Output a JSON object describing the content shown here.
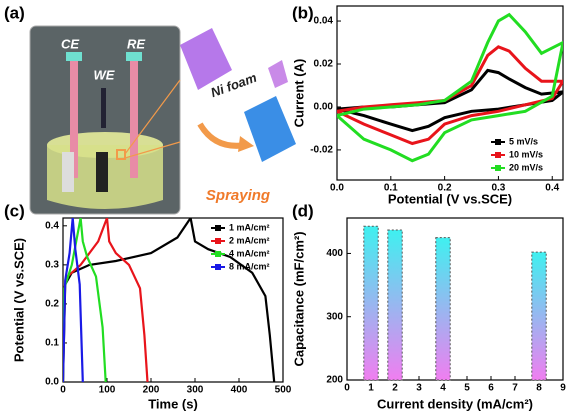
{
  "diagram": {
    "panel_label": "(a)",
    "labels": {
      "ce": "CE",
      "re": "RE",
      "we": "WE",
      "foam": "Ni foam",
      "spray": "Spraying"
    }
  },
  "chart_data": [
    {
      "type": "line",
      "panel_label": "(b)",
      "x_label": "Potential (V vs.SCE)",
      "y_label": "Current (A)",
      "xlim": [
        0,
        0.42
      ],
      "xticks": [
        {
          "value": 0,
          "label": "0.0"
        },
        0.1,
        0.2,
        0.3,
        0.4
      ],
      "ylim": [
        -0.034,
        0.047
      ],
      "yticks": [
        -0.02,
        {
          "value": 0,
          "label": "0.00"
        },
        0.02,
        0.04
      ],
      "legend": "lower right",
      "series": [
        {
          "name": "5 mV/s",
          "color": "#000000",
          "x": [
            0,
            0.05,
            0.1,
            0.15,
            0.2,
            0.25,
            0.28,
            0.3,
            0.32,
            0.35,
            0.38,
            0.42,
            0.4,
            0.35,
            0.3,
            0.25,
            0.2,
            0.17,
            0.14,
            0.1,
            0.05,
            0
          ],
          "values": [
            -0.001,
            0.0,
            0.0,
            0.001,
            0.002,
            0.008,
            0.017,
            0.016,
            0.013,
            0.009,
            0.006,
            0.007,
            0.003,
            0.001,
            -0.001,
            -0.002,
            -0.005,
            -0.009,
            -0.011,
            -0.008,
            -0.004,
            -0.001
          ]
        },
        {
          "name": "10 mV/s",
          "color": "#e8141b",
          "x": [
            0,
            0.05,
            0.1,
            0.15,
            0.2,
            0.25,
            0.28,
            0.3,
            0.32,
            0.35,
            0.38,
            0.42,
            0.4,
            0.35,
            0.3,
            0.25,
            0.2,
            0.17,
            0.14,
            0.1,
            0.05,
            0
          ],
          "values": [
            -0.002,
            0.0,
            0.001,
            0.002,
            0.003,
            0.01,
            0.024,
            0.028,
            0.026,
            0.018,
            0.012,
            0.012,
            0.004,
            0.001,
            -0.002,
            -0.004,
            -0.008,
            -0.015,
            -0.017,
            -0.013,
            -0.008,
            -0.002
          ]
        },
        {
          "name": "20 mV/s",
          "color": "#22dd22",
          "x": [
            0,
            0.05,
            0.1,
            0.15,
            0.2,
            0.25,
            0.28,
            0.3,
            0.32,
            0.35,
            0.38,
            0.42,
            0.4,
            0.35,
            0.3,
            0.25,
            0.2,
            0.17,
            0.14,
            0.1,
            0.05,
            0
          ],
          "values": [
            -0.004,
            -0.001,
            0.0,
            0.001,
            0.003,
            0.012,
            0.03,
            0.04,
            0.043,
            0.035,
            0.025,
            0.03,
            0.005,
            -0.002,
            -0.004,
            -0.006,
            -0.012,
            -0.022,
            -0.025,
            -0.02,
            -0.015,
            -0.004
          ]
        }
      ]
    },
    {
      "type": "line",
      "panel_label": "(c)",
      "x_label": "Time (s)",
      "y_label": "Potential (V vs.SCE)",
      "xlim": [
        0,
        500
      ],
      "xticks": [
        0,
        100,
        200,
        300,
        400,
        500
      ],
      "ylim": [
        0,
        0.42
      ],
      "yticks": [
        {
          "value": 0,
          "label": "0.0"
        },
        0.1,
        0.2,
        0.3,
        0.4
      ],
      "legend": "upper right",
      "series": [
        {
          "name": "1 mA/cm²",
          "color": "#000000",
          "x": [
            0,
            5,
            20,
            60,
            120,
            200,
            260,
            290,
            300,
            330,
            380,
            430,
            460,
            470,
            480
          ],
          "values": [
            0,
            0.25,
            0.28,
            0.3,
            0.31,
            0.33,
            0.37,
            0.42,
            0.36,
            0.34,
            0.32,
            0.28,
            0.22,
            0.12,
            0
          ]
        },
        {
          "name": "2 mA/cm²",
          "color": "#e8141b",
          "x": [
            0,
            3,
            10,
            40,
            80,
            100,
            105,
            120,
            150,
            175,
            185,
            192
          ],
          "values": [
            0,
            0.24,
            0.27,
            0.3,
            0.36,
            0.42,
            0.36,
            0.33,
            0.3,
            0.24,
            0.12,
            0
          ]
        },
        {
          "name": "4 mA/cm²",
          "color": "#22dd22",
          "x": [
            0,
            3,
            20,
            40,
            45,
            55,
            75,
            90,
            97
          ],
          "values": [
            0,
            0.24,
            0.3,
            0.42,
            0.36,
            0.32,
            0.27,
            0.14,
            0
          ]
        },
        {
          "name": "8 mA/cm²",
          "color": "#1a1ae6",
          "x": [
            0,
            5,
            15,
            22,
            28,
            38,
            45
          ],
          "values": [
            0,
            0.26,
            0.33,
            0.42,
            0.34,
            0.25,
            0
          ]
        }
      ]
    },
    {
      "type": "bar",
      "panel_label": "(d)",
      "x_label": "Current density (mA/cm²)",
      "y_label": "Capacitance (mF/cm²)",
      "xlim": [
        0,
        9
      ],
      "xticks": [
        0,
        1,
        2,
        3,
        4,
        5,
        6,
        7,
        8,
        9
      ],
      "ylim": [
        200,
        456
      ],
      "yticks": [
        200,
        300,
        400
      ],
      "x": [
        1,
        2,
        4,
        8
      ],
      "values": [
        443,
        437,
        425,
        402
      ]
    }
  ]
}
